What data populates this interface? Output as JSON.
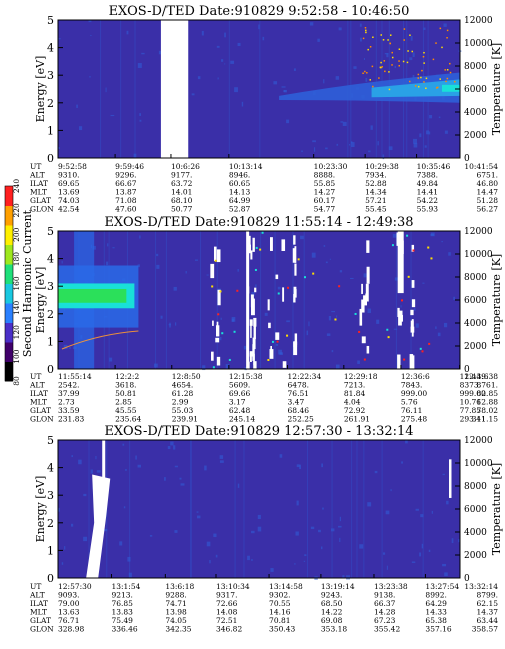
{
  "chart_data": [
    {
      "type": "heatmap",
      "title": "EXOS-D/TED   Date:910829  9:52:58 - 10:46:50",
      "ylabel": "Energy [eV]",
      "y2label": "Temperature [K]",
      "ylim": [
        0,
        5
      ],
      "yticks": [
        "0",
        "1",
        "2",
        "3",
        "4",
        "5"
      ],
      "y2lim": [
        0,
        12000
      ],
      "y2ticks": [
        "0",
        "2000",
        "4000",
        "6000",
        "8000",
        "10000",
        "12000"
      ],
      "gap": {
        "from": 0.256,
        "to": 0.324
      },
      "rows": [
        {
          "label": "UT",
          "values": [
            "9:52:58",
            "9:59:46",
            "10:6:26",
            "10:13:14",
            "10:23:30",
            "10:29:38",
            "10:35:46",
            "10:41:54"
          ]
        },
        {
          "label": "ALT",
          "values": [
            "9310.",
            "9296.",
            "9177.",
            "8946.",
            "8888.",
            "7934.",
            "7388.",
            "6751."
          ]
        },
        {
          "label": "ILAT",
          "values": [
            "69.65",
            "66.67",
            "63.72",
            "60.65",
            "55.85",
            "52.88",
            "49.84",
            "46.80"
          ]
        },
        {
          "label": "MLT",
          "values": [
            "13.69",
            "13.87",
            "14.01",
            "14.13",
            "14.27",
            "14.34",
            "14.41",
            "14.47"
          ]
        },
        {
          "label": "GLAT",
          "values": [
            "74.03",
            "71.08",
            "68.10",
            "64.99",
            "60.17",
            "57.21",
            "54.22",
            "51.28"
          ]
        },
        {
          "label": "GLON",
          "values": [
            "42.54",
            "47.60",
            "50.77",
            "52.87",
            "54.77",
            "55.45",
            "55.93",
            "56.27"
          ]
        }
      ],
      "col_pos": [
        0,
        0.142,
        0.281,
        0.425,
        0.636,
        0.764,
        0.892,
        1.02
      ]
    },
    {
      "type": "heatmap",
      "title": "EXOS-D/TED   Date:910829  11:55:14 - 12:49:38",
      "ylabel": "Energy [eV]",
      "y2label": "Temperature [K]",
      "ylim": [
        0,
        5
      ],
      "yticks": [
        "0",
        "1",
        "2",
        "3",
        "4",
        "5"
      ],
      "y2lim": [
        0,
        12000
      ],
      "y2ticks": [
        "0",
        "2000",
        "4000",
        "6000",
        "8000",
        "10000",
        "12000"
      ],
      "rows": [
        {
          "label": "UT",
          "values": [
            "11:55:14",
            "12:2:2",
            "12:8:50",
            "12:15:38",
            "12:22:34",
            "12:29:18",
            "12:36:6",
            "12:43:6",
            "12:49:38"
          ]
        },
        {
          "label": "ALT",
          "values": [
            "2542.",
            "3618.",
            "4654.",
            "5609.",
            "6478.",
            "7213.",
            "7843.",
            "8373.",
            "8761."
          ]
        },
        {
          "label": "ILAT",
          "values": [
            "37.99",
            "50.81",
            "61.28",
            "69.66",
            "76.51",
            "81.84",
            "999.00",
            "999.00",
            "82.85"
          ]
        },
        {
          "label": "MLT",
          "values": [
            "2.73",
            "2.85",
            "2.99",
            "3.17",
            "3.47",
            "4.04",
            "5.76",
            "10.76",
            "12.88"
          ]
        },
        {
          "label": "GLAT",
          "values": [
            "33.59",
            "45.55",
            "55.03",
            "62.48",
            "68.46",
            "72.92",
            "76.11",
            "77.85",
            "78.02"
          ]
        },
        {
          "label": "GLON",
          "values": [
            "231.83",
            "235.64",
            "239.91",
            "245.14",
            "252.25",
            "261.91",
            "275.48",
            "293.41",
            "311.15"
          ]
        }
      ],
      "col_pos": [
        0,
        0.142,
        0.283,
        0.425,
        0.571,
        0.711,
        0.853,
        0.999,
        1.14
      ]
    },
    {
      "type": "heatmap",
      "title": "EXOS-D/TED   Date:910829  12:57:30 - 13:32:14",
      "ylabel": "Energy [eV]",
      "y2label": "Temperature [K]",
      "ylim": [
        0,
        5
      ],
      "yticks": [
        "0",
        "1",
        "2",
        "3",
        "4",
        "5"
      ],
      "y2lim": [
        0,
        12000
      ],
      "y2ticks": [
        "0",
        "2000",
        "4000",
        "6000",
        "8000",
        "10000",
        "12000"
      ],
      "rows": [
        {
          "label": "UT",
          "values": [
            "12:57:30",
            "13:1:54",
            "13:6:18",
            "13:10:34",
            "13:14:58",
            "13:19:14",
            "13:23:38",
            "13:27:54",
            "13:32:14"
          ]
        },
        {
          "label": "ALT",
          "values": [
            "9093.",
            "9213.",
            "9288.",
            "9317.",
            "9302.",
            "9243.",
            "9138.",
            "8992.",
            "8799."
          ]
        },
        {
          "label": "ILAT",
          "values": [
            "79.00",
            "76.85",
            "74.71",
            "72.66",
            "70.55",
            "68.50",
            "66.37",
            "64.29",
            "62.15"
          ]
        },
        {
          "label": "MLT",
          "values": [
            "13.63",
            "13.83",
            "13.98",
            "14.08",
            "14.16",
            "14.22",
            "14.28",
            "14.33",
            "14.37"
          ]
        },
        {
          "label": "GLAT",
          "values": [
            "76.71",
            "75.49",
            "74.05",
            "72.51",
            "70.81",
            "69.08",
            "67.23",
            "65.38",
            "63.44"
          ]
        },
        {
          "label": "GLON",
          "values": [
            "328.98",
            "336.46",
            "342.35",
            "346.82",
            "350.43",
            "353.18",
            "355.42",
            "357.16",
            "358.57"
          ]
        }
      ],
      "col_pos": [
        0,
        0.133,
        0.267,
        0.393,
        0.525,
        0.654,
        0.786,
        0.914,
        1.045
      ]
    }
  ],
  "colorbar": {
    "label": "Second Harmonic Current",
    "range": [
      80,
      240
    ],
    "ticks": [
      "80",
      "100",
      "120",
      "140",
      "160",
      "180",
      "200",
      "220",
      "240"
    ]
  },
  "colors": {
    "background": "#3a2fa8",
    "noise": "#2f5fd8",
    "hot": "#19e0d8",
    "very_hot": "#ffe000",
    "core": "#2be05a",
    "gap": "#ffffff"
  }
}
